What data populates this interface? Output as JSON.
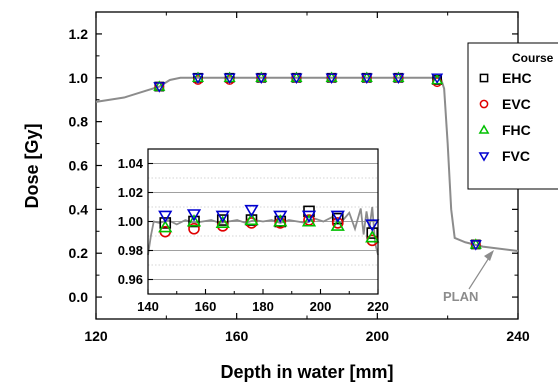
{
  "chart_data": [
    {
      "type": "line",
      "panel": "main",
      "xlabel": "Depth in water [mm]",
      "ylabel": "Dose [Gy]",
      "xlim": [
        120,
        240
      ],
      "ylim": [
        -0.1,
        1.3
      ],
      "xticks": [
        "120",
        "160",
        "200",
        "240"
      ],
      "yticks": [
        "0.0",
        "0.2",
        "0.4",
        "0.6",
        "0.8",
        "1.0",
        "1.2"
      ],
      "legend_title": "Course",
      "legend_position": "top-right",
      "annotation": "PLAN",
      "plan": {
        "name": "PLAN",
        "color": "#8c8c8c",
        "x": [
          120,
          128,
          134,
          138,
          141,
          144,
          148,
          152,
          158,
          165,
          172,
          180,
          188,
          196,
          204,
          210,
          214,
          217,
          218,
          219,
          220,
          221,
          222,
          225,
          230,
          240
        ],
        "y": [
          0.89,
          0.91,
          0.94,
          0.96,
          0.99,
          1.0,
          1.0,
          1.0,
          1.0,
          1.0,
          1.0,
          1.0,
          1.0,
          1.0,
          1.0,
          1.0,
          1.0,
          1.0,
          1.0,
          0.95,
          0.7,
          0.4,
          0.27,
          0.25,
          0.23,
          0.21
        ]
      },
      "series": [
        {
          "name": "EHC",
          "marker": "square",
          "color": "#000000",
          "x": [
            138,
            149,
            158,
            167,
            177,
            187,
            197,
            206,
            217,
            228
          ],
          "y": [
            0.96,
            1.0,
            1.0,
            1.0,
            1.0,
            1.0,
            1.0,
            1.0,
            0.99,
            0.24
          ]
        },
        {
          "name": "EVC",
          "marker": "circle",
          "color": "#e00000",
          "x": [
            138,
            149,
            158,
            167,
            177,
            187,
            197,
            206,
            217,
            228
          ],
          "y": [
            0.96,
            0.99,
            0.99,
            1.0,
            1.0,
            1.0,
            1.0,
            1.0,
            0.98,
            0.24
          ]
        },
        {
          "name": "FHC",
          "marker": "triangle-up",
          "color": "#00c000",
          "x": [
            138,
            149,
            158,
            167,
            177,
            187,
            197,
            206,
            217,
            228
          ],
          "y": [
            0.96,
            1.0,
            1.0,
            1.0,
            1.0,
            1.0,
            1.0,
            1.0,
            0.99,
            0.24
          ]
        },
        {
          "name": "FVC",
          "marker": "triangle-down",
          "color": "#0000d0",
          "x": [
            138,
            149,
            158,
            167,
            177,
            187,
            197,
            206,
            217,
            228
          ],
          "y": [
            0.96,
            1.0,
            1.0,
            1.0,
            1.0,
            1.0,
            1.0,
            1.0,
            1.0,
            0.24
          ]
        }
      ]
    },
    {
      "type": "line",
      "panel": "inset",
      "xlim": [
        140,
        220
      ],
      "ylim": [
        0.95,
        1.05
      ],
      "xticks": [
        "140",
        "160",
        "180",
        "200",
        "220"
      ],
      "yticks": [
        "0.96",
        "0.98",
        "1.00",
        "1.02",
        "1.04"
      ],
      "grid": true,
      "plan": {
        "name": "PLAN",
        "color": "#8c8c8c",
        "x": [
          140,
          141,
          142,
          144,
          147,
          150,
          153,
          156,
          159,
          162,
          165,
          168,
          171,
          174,
          177,
          180,
          183,
          186,
          189,
          192,
          195,
          198,
          201,
          204,
          207,
          210,
          212,
          214,
          215,
          216,
          217,
          218,
          219,
          220
        ],
        "y": [
          0.977,
          0.99,
          1.0,
          0.999,
          1.001,
          0.998,
          1.001,
          0.999,
          1.0,
          1.001,
          0.999,
          1.0,
          1.001,
          0.999,
          1.001,
          1.0,
          1.001,
          0.999,
          1.001,
          1.0,
          0.999,
          1.002,
          1.0,
          1.003,
          0.999,
          1.006,
          0.995,
          1.009,
          0.991,
          1.007,
          0.995,
          1.01,
          0.985,
          0.977
        ]
      },
      "series": [
        {
          "name": "EHC",
          "marker": "square",
          "color": "#000000",
          "x": [
            146,
            156,
            166,
            176,
            186,
            196,
            206,
            218
          ],
          "y": [
            0.999,
            1.0,
            1.001,
            1.001,
            1.0,
            1.007,
            1.002,
            0.992
          ]
        },
        {
          "name": "EVC",
          "marker": "circle",
          "color": "#e00000",
          "x": [
            146,
            156,
            166,
            176,
            186,
            196,
            206,
            218
          ],
          "y": [
            0.993,
            0.995,
            0.997,
            0.999,
            0.999,
            1.001,
            0.999,
            0.987
          ]
        },
        {
          "name": "FHC",
          "marker": "triangle-up",
          "color": "#00c000",
          "x": [
            146,
            156,
            166,
            176,
            186,
            196,
            206,
            218
          ],
          "y": [
            0.996,
            1.0,
            0.999,
            1.001,
            1.0,
            1.0,
            0.997,
            0.989
          ]
        },
        {
          "name": "FVC",
          "marker": "triangle-down",
          "color": "#0000d0",
          "x": [
            146,
            156,
            166,
            176,
            186,
            196,
            206,
            218
          ],
          "y": [
            1.004,
            1.005,
            1.004,
            1.008,
            1.004,
            1.004,
            1.004,
            0.998
          ]
        }
      ]
    }
  ]
}
